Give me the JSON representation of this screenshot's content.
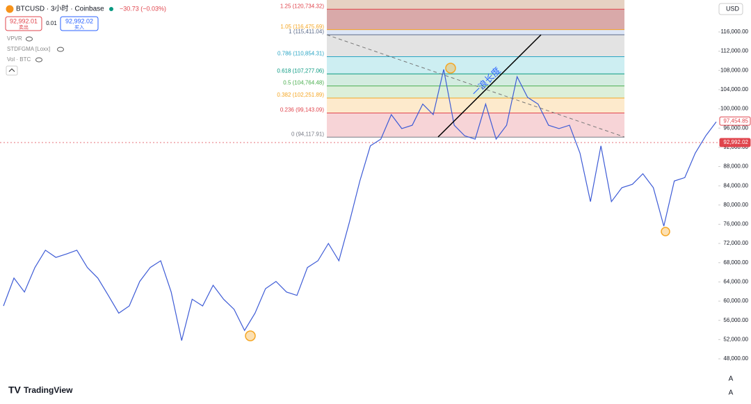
{
  "header": {
    "symbol": "BTCUSD · 3小时 · Coinbase",
    "change": "−30.73 (−0.03%)",
    "sell_price": "92,992.01",
    "sell_label": "卖出",
    "spread": "0.01",
    "buy_price": "92,992.02",
    "buy_label": "买入",
    "indicators": [
      "VPVR",
      "STDFGMA [Loxx]",
      "Vol · BTC"
    ],
    "currency": "USD",
    "logo": "TradingView",
    "scale_buttons": [
      "A",
      "A"
    ]
  },
  "chart_data": {
    "type": "line",
    "color": "#3d5bd6",
    "values": [
      59000,
      64800,
      61900,
      67000,
      70600,
      69100,
      69800,
      70600,
      67000,
      64800,
      61200,
      57500,
      59000,
      64100,
      67000,
      68400,
      61900,
      51800,
      60400,
      59000,
      63300,
      60400,
      58300,
      53900,
      57500,
      62600,
      64100,
      61900,
      61200,
      67000,
      68400,
      72000,
      68400,
      76400,
      85000,
      92300,
      93700,
      98800,
      95900,
      96600,
      101000,
      98800,
      108200,
      96600,
      94400,
      93700,
      101000,
      93700,
      96600,
      106700,
      102400,
      101000,
      96600,
      95900,
      96600,
      90800,
      80700,
      92300,
      80700,
      83600,
      84300,
      86500,
      83600,
      75600,
      85000,
      85700,
      90800,
      94400,
      97300
    ],
    "ylim": [
      38600,
      122650
    ],
    "yticks": [
      {
        "value": 48000,
        "label": "48,000.00"
      },
      {
        "value": 52000,
        "label": "52,000.00"
      },
      {
        "value": 56000,
        "label": "56,000.00"
      },
      {
        "value": 60000,
        "label": "60,000.00"
      },
      {
        "value": 64000,
        "label": "64,000.00"
      },
      {
        "value": 68000,
        "label": "68,000.00"
      },
      {
        "value": 72000,
        "label": "72,000.00"
      },
      {
        "value": 76000,
        "label": "76,000.00"
      },
      {
        "value": 80000,
        "label": "80,000.00"
      },
      {
        "value": 84000,
        "label": "84,000.00"
      },
      {
        "value": 88000,
        "label": "88,000.00"
      },
      {
        "value": 92000,
        "label": "92,000.00"
      },
      {
        "value": 96000,
        "label": "96,000.00"
      },
      {
        "value": 100000,
        "label": "100,000.00"
      },
      {
        "value": 104000,
        "label": "104,000.00"
      },
      {
        "value": 108000,
        "label": "108,000.00"
      },
      {
        "value": 112000,
        "label": "112,000.00"
      },
      {
        "value": 116000,
        "label": "116,000.00"
      }
    ],
    "fib_levels": [
      {
        "value": 94117.91,
        "label": "0 (94,117.91)",
        "color": "#787b86",
        "fill": "#f7d4d7"
      },
      {
        "value": 99143.09,
        "label": "0.236 (99,143.09)",
        "color": "#e0444c",
        "fill": "#fdeacc"
      },
      {
        "value": 102251.89,
        "label": "0.382 (102,251.89)",
        "color": "#f5a623",
        "fill": "#dcefd9"
      },
      {
        "value": 104764.48,
        "label": "0.5 (104,764.48)",
        "color": "#4caf50",
        "fill": "#d3ece0"
      },
      {
        "value": 107277.06,
        "label": "0.618 (107,277.06)",
        "color": "#089981",
        "fill": "#cdeef2"
      },
      {
        "value": 110854.31,
        "label": "0.786 (110,854.31)",
        "color": "#2aa5c4",
        "fill": "#e3e3e3"
      },
      {
        "value": 115411.04,
        "label": "1 (115,411.04)",
        "color": "#5b6a89",
        "fill": "#dce6f7"
      },
      {
        "value": 116475.69,
        "label": "1.05 (116,475.69)",
        "color": "#f5a623",
        "fill": "#d9a9a9"
      },
      {
        "value": 120734.32,
        "label": "1.25 (120,734.32)",
        "color": "#e0444c",
        "fill": "#e6d2c3"
      }
    ],
    "annotation": "一浪长度",
    "price_labels": [
      {
        "value": 97454.85,
        "label": "97,454.85"
      },
      {
        "value": 92992.02,
        "label": "92,992.02"
      }
    ]
  }
}
